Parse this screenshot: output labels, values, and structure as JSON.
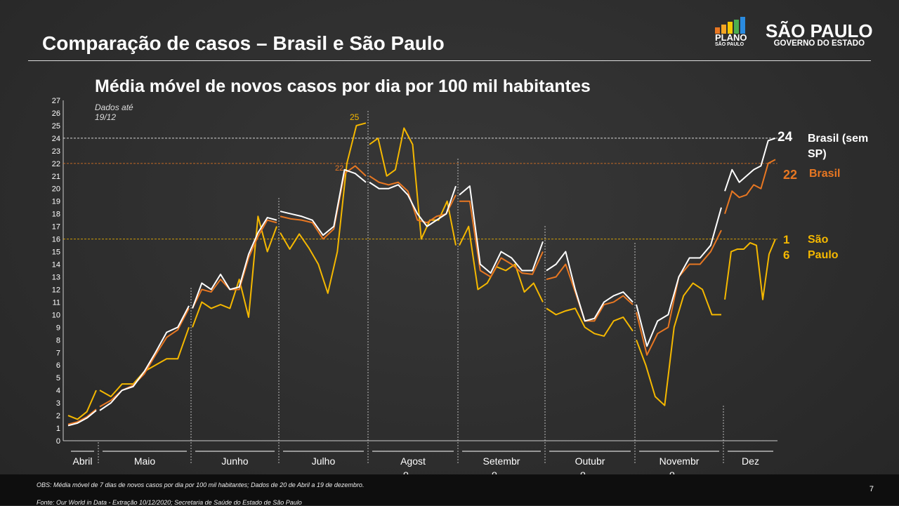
{
  "header": {
    "title": "Comparação de casos – Brasil e São Paulo",
    "subtitle": "Média móvel de novos casos por dia por 100 mil habitantes",
    "dados": "Dados até 19/12"
  },
  "logos": {
    "plano_line1": "PLANO",
    "plano_line2": "SÃO PAULO",
    "sp_line1": "SÃO PAULO",
    "sp_line2": "GOVERNO DO ESTADO"
  },
  "footer": {
    "obs": "OBS: Média móvel de 7 dias de novos casos por dia por 100 mil habitantes; Dados de 20 de Abril a 19 de dezembro.",
    "fonte": "Fonte: Our World in Data - Extração 10/12/2020; Secretaria de Saúde do Estado de São Paulo",
    "page": "7"
  },
  "labels": {
    "brasil_sem_sp_value": "24",
    "brasil_sem_sp": "Brasil (sem SP)",
    "brasil_value": "22",
    "brasil": "Brasil",
    "sp_value": "16",
    "sp": "São Paulo",
    "peak_sp": "25",
    "peak_br": "22"
  },
  "chart_data": {
    "type": "line",
    "title": "Média móvel de novos casos por dia por 100 mil habitantes",
    "ylim": [
      0,
      27
    ],
    "yticks": [
      0,
      1,
      2,
      3,
      4,
      5,
      6,
      7,
      8,
      9,
      10,
      11,
      12,
      13,
      14,
      15,
      16,
      17,
      18,
      19,
      20,
      21,
      22,
      23,
      24,
      25,
      26,
      27
    ],
    "months": [
      "Abril",
      "Maio",
      "Junho",
      "Julho",
      "Agosto",
      "Setembro",
      "Outubro",
      "Novembro",
      "Dez"
    ],
    "reference_lines": [
      {
        "value": 24,
        "color": "#ffffff"
      },
      {
        "value": 22,
        "color": "#e87722"
      },
      {
        "value": 16,
        "color": "#f5b800"
      }
    ],
    "series": [
      {
        "name": "Brasil (sem SP)",
        "color": "#ffffff",
        "months": [
          [
            1.2,
            1.4,
            1.8,
            2.4
          ],
          [
            2.4,
            3,
            4,
            4.3,
            5.5,
            7,
            8.6,
            9,
            10.7
          ],
          [
            10.5,
            12.5,
            12,
            13.2,
            12,
            12.2,
            14.8,
            16.5,
            17.7,
            17.5
          ],
          [
            18.2,
            18,
            17.8,
            17.5,
            16.3,
            17,
            21.5,
            21.2,
            20.5
          ],
          [
            20.5,
            20,
            20,
            20.3,
            19.5,
            18,
            17,
            17.5,
            18,
            20.2
          ],
          [
            19.5,
            20.2,
            14,
            13.3,
            15,
            14.5,
            13.5,
            13.5,
            15.8
          ],
          [
            13.5,
            14,
            15,
            12,
            9.5,
            9.7,
            11,
            11.5,
            11.8,
            11
          ],
          [
            10.8,
            7.5,
            9.5,
            10,
            13,
            14.5,
            14.5,
            15.5,
            18.5
          ],
          [
            19.8,
            21.5,
            20.5,
            21,
            21.5,
            21.8,
            23.8,
            24
          ]
        ]
      },
      {
        "name": "Brasil",
        "color": "#e87722",
        "months": [
          [
            1.3,
            1.5,
            1.9,
            2.5
          ],
          [
            2.7,
            3.2,
            4,
            4.4,
            5.3,
            6.8,
            8.2,
            8.8,
            10.5
          ],
          [
            10.5,
            12,
            11.8,
            12.8,
            12,
            12,
            14.5,
            16.2,
            17.5,
            17.3
          ],
          [
            17.8,
            17.6,
            17.5,
            17.3,
            16,
            16.8,
            21.2,
            21.8,
            21
          ],
          [
            21,
            20.5,
            20.3,
            20.5,
            19.8,
            17.5,
            17.3,
            17.8,
            18,
            19.5
          ],
          [
            19,
            19,
            13.5,
            13,
            14.5,
            14,
            13.3,
            13.2,
            15
          ],
          [
            12.8,
            13,
            14,
            11.8,
            9.5,
            9.5,
            10.8,
            11,
            11.5,
            10.8
          ],
          [
            10.2,
            6.8,
            8.5,
            9,
            13,
            14,
            14,
            15,
            16.7
          ],
          [
            18,
            19.8,
            19.3,
            19.5,
            20.3,
            20,
            22,
            22.3
          ]
        ]
      },
      {
        "name": "São Paulo",
        "color": "#f5b800",
        "months": [
          [
            2,
            1.7,
            2.3,
            4
          ],
          [
            4,
            3.5,
            4.5,
            4.5,
            5.5,
            6,
            6.5,
            6.5,
            9
          ],
          [
            9,
            11,
            10.5,
            10.8,
            10.5,
            12.8,
            9.8,
            17.8,
            15,
            17
          ],
          [
            16.5,
            15.2,
            16.4,
            15.3,
            14,
            11.7,
            15,
            22,
            25,
            25.2
          ],
          [
            23.5,
            24,
            21,
            21.5,
            24.8,
            23.5,
            16,
            17.5,
            17.5,
            19,
            15.5
          ],
          [
            15.5,
            17,
            12,
            12.5,
            13.8,
            13.5,
            14,
            11.8,
            12.5,
            11
          ],
          [
            10.5,
            10,
            10.3,
            10.5,
            9,
            8.5,
            8.3,
            9.5,
            9.8,
            8.7
          ],
          [
            8,
            6,
            3.5,
            2.8,
            9,
            11.5,
            12.5,
            12,
            10,
            10
          ],
          [
            11.2,
            15,
            15.2,
            15.2,
            15.7,
            15.5,
            11.2,
            14.8,
            16
          ]
        ]
      }
    ]
  }
}
